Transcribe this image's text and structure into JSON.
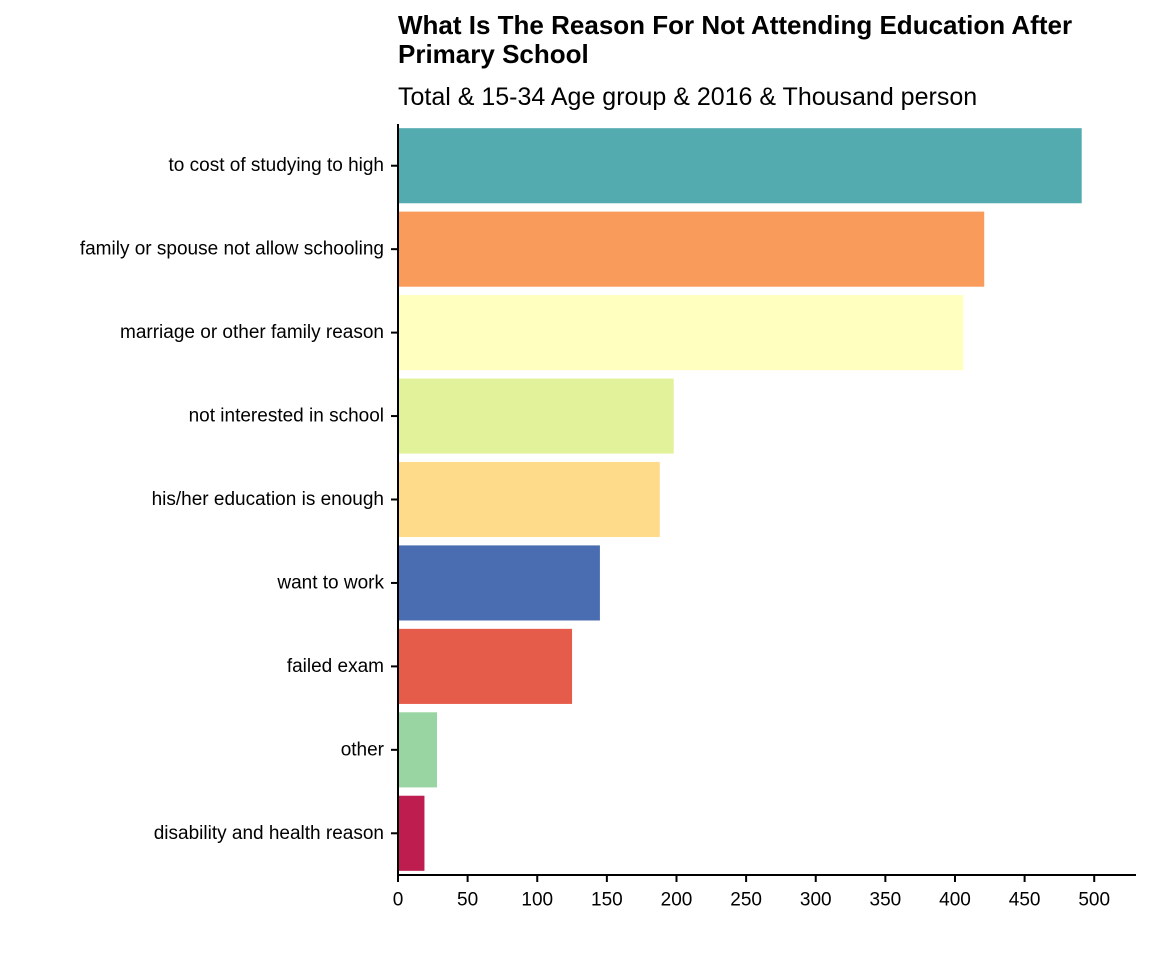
{
  "chart_data": {
    "type": "bar",
    "orientation": "horizontal",
    "title": "What Is The Reason For Not Attending Education After Primary School",
    "subtitle": "Total & 15-34 Age group & 2016 & Thousand person",
    "xlabel": "",
    "ylabel": "",
    "xlim": [
      0,
      530
    ],
    "x_ticks": [
      0,
      50,
      100,
      150,
      200,
      250,
      300,
      350,
      400,
      450,
      500
    ],
    "grid": false,
    "legend": "none",
    "categories": [
      "to cost of studying to high",
      "family or spouse not allow schooling",
      "marriage or other family reason",
      "not interested in school",
      "his/her education is enough",
      "want to work",
      "failed exam",
      "other",
      "disability and health reason"
    ],
    "values": [
      491,
      421,
      406,
      198,
      188,
      145,
      125,
      28,
      19
    ],
    "colors": [
      "#53abb0",
      "#f99b5b",
      "#ffffbf",
      "#e1f29b",
      "#fddb8a",
      "#4a6cb0",
      "#e65c4b",
      "#98d5a3",
      "#be1d4f"
    ]
  }
}
